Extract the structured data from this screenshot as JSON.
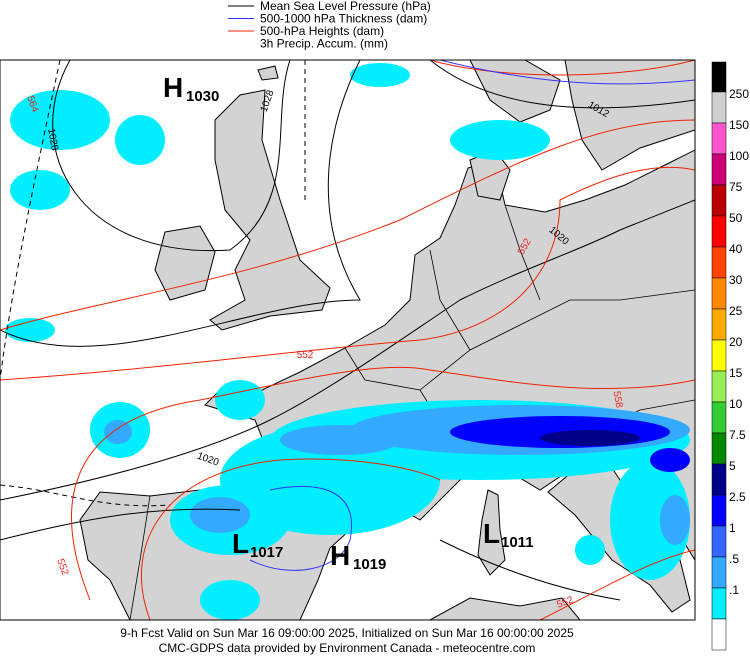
{
  "legend": [
    {
      "label": "Mean Sea Level Pressure (hPa)",
      "color": "#000000"
    },
    {
      "label": "500-1000 hPa Thickness (dam)",
      "color": "#3333ff"
    },
    {
      "label": "500-hPa Heights (dam)",
      "color": "#ff2200"
    },
    {
      "label": "3h Precip. Accum. (mm)",
      "color": null
    }
  ],
  "pressure_centers": [
    {
      "letter": "H",
      "value": "1030"
    },
    {
      "letter": "L",
      "value": "1017"
    },
    {
      "letter": "H",
      "value": "1019"
    },
    {
      "letter": "L",
      "value": "1011"
    }
  ],
  "contour_labels": [
    "564",
    "1028",
    "1028",
    "1012",
    "1020",
    "552",
    "552",
    "558",
    "1020",
    "552",
    "552"
  ],
  "colorbar": {
    "labels": [
      "250",
      "150",
      "100",
      "75",
      "50",
      "40",
      "30",
      "25",
      "20",
      "15",
      "10",
      "7.5",
      "5",
      "2.5",
      "1",
      ".5",
      ".1"
    ],
    "colors": [
      "#000000",
      "#d0d0d0",
      "#ff55cc",
      "#cc0077",
      "#bb0000",
      "#ff0000",
      "#ff4400",
      "#ff8800",
      "#ffaa00",
      "#ffff00",
      "#99ee55",
      "#33cc33",
      "#008800",
      "#000088",
      "#0000ff",
      "#3366ff",
      "#33aaff",
      "#00eeff",
      "#ffffff"
    ]
  },
  "footer": {
    "line1": "9-h Fcst Valid on Sun Mar 16 09:00:00 2025, Initialized on Sun Mar 16 00:00:00 2025",
    "line2": "CMC-GDPS data provided by Environment Canada - meteocentre.com"
  }
}
